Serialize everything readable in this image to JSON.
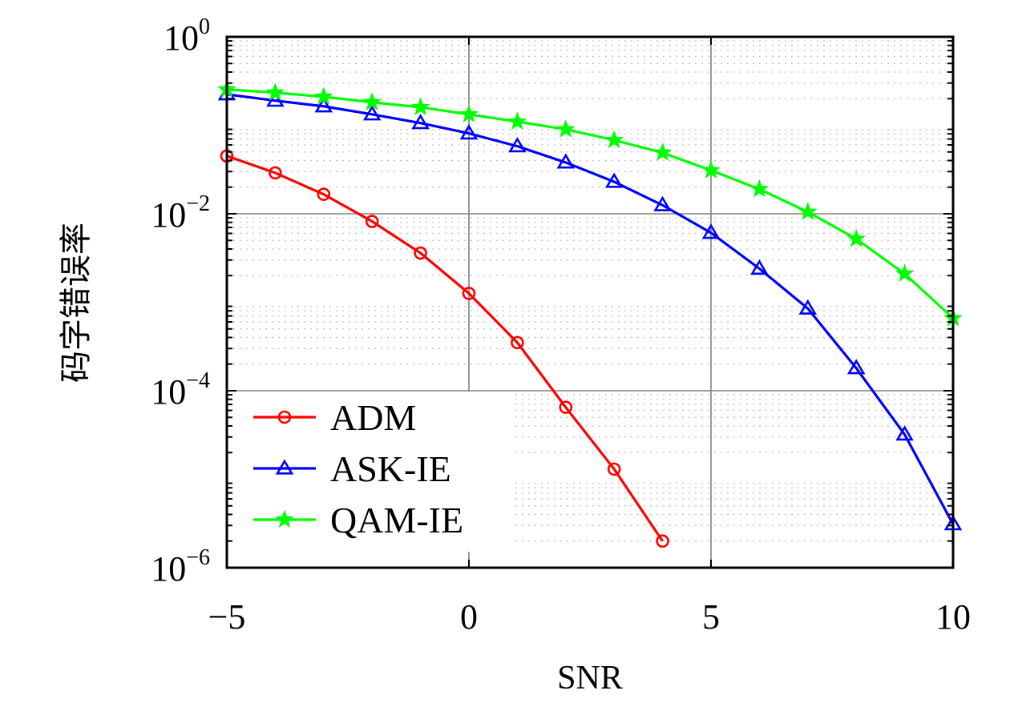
{
  "chart_data": {
    "type": "line",
    "title": "",
    "xlabel": "SNR",
    "ylabel": "码字错误率",
    "xlim": [
      -5,
      10
    ],
    "ylim": [
      1e-06,
      1
    ],
    "yscale": "log",
    "grid": true,
    "legend_position": "bottom-left",
    "x_ticks": [
      -5,
      0,
      5,
      10
    ],
    "x_tick_labels": [
      "−5",
      "0",
      "5",
      "10"
    ],
    "y_ticks": [
      {
        "value": 1,
        "base": "10",
        "exp": "0"
      },
      {
        "value": 0.01,
        "base": "10",
        "exp": "−2"
      },
      {
        "value": 0.0001,
        "base": "10",
        "exp": "−4"
      },
      {
        "value": 1e-06,
        "base": "10",
        "exp": "−6"
      }
    ],
    "series": [
      {
        "name": "ADM",
        "color": "#ff0000",
        "marker": "circle",
        "x": [
          -5,
          -4,
          -3,
          -2,
          -1,
          0,
          1,
          2,
          3,
          4
        ],
        "y": [
          0.045,
          0.029,
          0.0166,
          0.0082,
          0.0036,
          0.00126,
          0.00035,
          6.5e-05,
          1.3e-05,
          2e-06
        ]
      },
      {
        "name": "ASK-IE",
        "color": "#0000ff",
        "marker": "triangle",
        "x": [
          -5,
          -4,
          -3,
          -2,
          -1,
          0,
          1,
          2,
          3,
          4,
          5,
          6,
          7,
          8,
          9,
          10
        ],
        "y": [
          0.224,
          0.19,
          0.164,
          0.133,
          0.106,
          0.081,
          0.058,
          0.038,
          0.023,
          0.0125,
          0.0061,
          0.0024,
          0.00085,
          0.00018,
          3.2e-05,
          3.1e-06
        ]
      },
      {
        "name": "QAM-IE",
        "color": "#00ff00",
        "marker": "star",
        "x": [
          -5,
          -4,
          -3,
          -2,
          -1,
          0,
          1,
          2,
          3,
          4,
          5,
          6,
          7,
          8,
          9,
          10
        ],
        "y": [
          0.254,
          0.234,
          0.21,
          0.182,
          0.16,
          0.133,
          0.11,
          0.09,
          0.068,
          0.049,
          0.031,
          0.019,
          0.0105,
          0.0052,
          0.0021,
          0.00066
        ]
      }
    ]
  }
}
